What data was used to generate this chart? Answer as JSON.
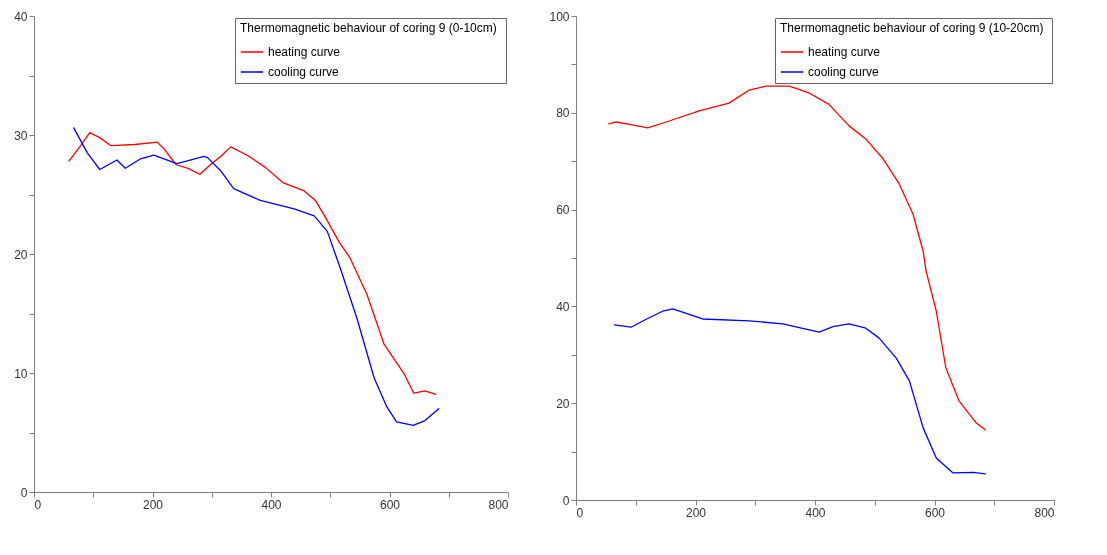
{
  "chart_data": [
    {
      "type": "line",
      "legend_title": "Thermomagnetic behaviour of  coring 9 (0-10cm)",
      "legend": "top right",
      "line_style": "solid",
      "marker": "none",
      "grid": false,
      "xlim": [
        0,
        800
      ],
      "xticks": [
        0,
        {
          "value": 100,
          "label": null
        },
        200,
        {
          "value": 300,
          "label": null
        },
        400,
        {
          "value": 500,
          "label": null
        },
        600,
        {
          "value": 700,
          "label": null
        },
        800
      ],
      "ylim": [
        0,
        40
      ],
      "yticks": [
        0,
        {
          "value": 5,
          "label": null
        },
        10,
        {
          "value": 15,
          "label": null
        },
        20,
        {
          "value": 25,
          "label": null
        },
        30,
        {
          "value": 35,
          "label": null
        },
        40
      ],
      "series": [
        {
          "name": "heating curve",
          "color": "#ff0000",
          "x": [
            59,
            80,
            94,
            110,
            130,
            170,
            208,
            220,
            240,
            260,
            280,
            300,
            315,
            332,
            360,
            390,
            420,
            456,
            475,
            495,
            515,
            533,
            562,
            591,
            625,
            641,
            660,
            678
          ],
          "values": [
            27.8,
            29.2,
            30.2,
            29.8,
            29.1,
            29.2,
            29.4,
            28.8,
            27.5,
            27.2,
            26.7,
            27.6,
            28.2,
            29.0,
            28.3,
            27.3,
            26.0,
            25.3,
            24.5,
            22.8,
            21.0,
            19.7,
            16.6,
            12.4,
            9.9,
            8.3,
            8.5,
            8.2
          ]
        },
        {
          "name": "cooling curve",
          "color": "#0000ff",
          "x": [
            67,
            90,
            111,
            140,
            154,
            180,
            202,
            241,
            265,
            287,
            293,
            315,
            337,
            382,
            439,
            473,
            495,
            517,
            545,
            574,
            595,
            612,
            640,
            660,
            683
          ],
          "values": [
            30.6,
            28.5,
            27.1,
            27.9,
            27.2,
            28.0,
            28.3,
            27.6,
            27.9,
            28.2,
            28.1,
            27.0,
            25.5,
            24.5,
            23.8,
            23.2,
            21.9,
            18.8,
            14.6,
            9.6,
            7.2,
            5.9,
            5.6,
            6.0,
            7.0
          ]
        }
      ]
    },
    {
      "type": "line",
      "legend_title": "Thermomagnetic behaviour of  coring 9 (10-20cm)",
      "legend": "top right",
      "line_style": "solid",
      "marker": "none",
      "grid": false,
      "xlim": [
        0,
        800
      ],
      "xticks": [
        0,
        {
          "value": 100,
          "label": null
        },
        200,
        {
          "value": 300,
          "label": null
        },
        400,
        {
          "value": 500,
          "label": null
        },
        600,
        {
          "value": 700,
          "label": null
        },
        800
      ],
      "ylim": [
        0,
        100
      ],
      "yticks": [
        0,
        {
          "value": 10,
          "label": null
        },
        20,
        {
          "value": 30,
          "label": null
        },
        40,
        {
          "value": 50,
          "label": null
        },
        60,
        {
          "value": 70,
          "label": null
        },
        80,
        {
          "value": 90,
          "label": null
        },
        100
      ],
      "series": [
        {
          "name": "heating curve",
          "color": "#ff0000",
          "x": [
            55,
            67,
            90,
            120,
            151,
            206,
            256,
            290,
            318,
            357,
            390,
            423,
            457,
            485,
            514,
            541,
            564,
            581,
            586,
            603,
            619,
            641,
            670,
            685
          ],
          "values": [
            77.7,
            78.1,
            77.6,
            76.9,
            78.1,
            80.4,
            82.0,
            84.7,
            85.5,
            85.5,
            84.1,
            81.8,
            77.3,
            74.6,
            70.5,
            65.3,
            59.1,
            51.4,
            47.3,
            39.0,
            27.3,
            20.5,
            15.9,
            14.5
          ]
        },
        {
          "name": "cooling curve",
          "color": "#0000ff",
          "x": [
            64,
            92,
            120,
            145,
            162,
            212,
            290,
            346,
            407,
            430,
            457,
            485,
            507,
            536,
            558,
            581,
            603,
            631,
            665,
            685
          ],
          "values": [
            36.2,
            35.7,
            37.5,
            39.0,
            39.5,
            37.4,
            37.0,
            36.4,
            34.7,
            35.8,
            36.4,
            35.5,
            33.5,
            29.3,
            24.6,
            14.9,
            8.7,
            5.6,
            5.7,
            5.4
          ]
        }
      ]
    }
  ]
}
